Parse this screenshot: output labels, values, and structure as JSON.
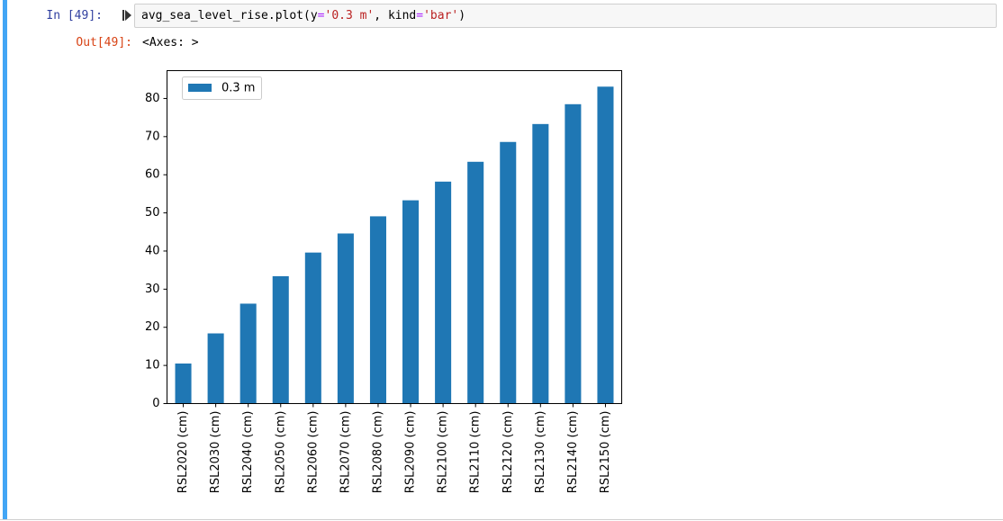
{
  "cell": {
    "input_prompt": "In [49]:",
    "code": {
      "t1": "avg_sea_level_rise.plot(y",
      "t2": "=",
      "t3": "'0.3 m'",
      "t4": ", kind",
      "t5": "=",
      "t6": "'bar'",
      "t7": ")"
    },
    "output_prompt": "Out[49]:",
    "output_text": "<Axes: >"
  },
  "colors": {
    "bar": "#1f77b4",
    "cell_accent": "#42a5f5",
    "in_prompt": "#303f9f",
    "out_prompt": "#d84315"
  },
  "chart_data": {
    "type": "bar",
    "categories": [
      "RSL2020 (cm)",
      "RSL2030 (cm)",
      "RSL2040 (cm)",
      "RSL2050 (cm)",
      "RSL2060 (cm)",
      "RSL2070 (cm)",
      "RSL2080 (cm)",
      "RSL2090 (cm)",
      "RSL2100 (cm)",
      "RSL2110 (cm)",
      "RSL2120 (cm)",
      "RSL2130 (cm)",
      "RSL2140 (cm)",
      "RSL2150 (cm)"
    ],
    "series": [
      {
        "name": "0.3 m",
        "values": [
          10.5,
          18.4,
          26.2,
          33.4,
          39.6,
          44.6,
          49.1,
          53.3,
          58.2,
          63.4,
          68.6,
          73.3,
          78.5,
          83.1
        ]
      }
    ],
    "yticks": [
      "0",
      "10",
      "20",
      "30",
      "40",
      "50",
      "60",
      "70",
      "80"
    ],
    "ylim": [
      0,
      87.3
    ],
    "legend": "top-left",
    "grid": false
  }
}
